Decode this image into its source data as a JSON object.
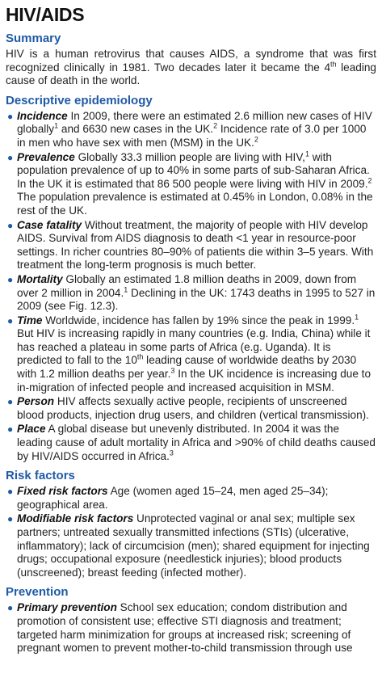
{
  "title": "HIV/AIDS",
  "summary": {
    "heading": "Summary",
    "text1": "HIV is a human retrovirus that causes AIDS, a syndrome that was first recognized clinically in 1981. Two decades later it became the 4",
    "sup": "th",
    "text2": " leading cause of death in the world."
  },
  "epidemiology": {
    "heading": "Descriptive epidemiology",
    "incidence": {
      "term": "Incidence",
      "t1": " In 2009, there were an estimated 2.6 million new cases of HIV globally",
      "s1": "1",
      "t2": " and 6630 new cases in the UK.",
      "s2": "2",
      "t3": " Incidence rate of 3.0 per 1000 in men who have sex with men (MSM) in the UK.",
      "s3": "2"
    },
    "prevalence": {
      "term": "Prevalence",
      "t1": " Globally 33.3 million people are living with HIV,",
      "s1": "1",
      "t2": " with population prevalence of up to 40% in some parts of sub-Saharan Africa. In the UK it is estimated that 86 500 people were living with HIV in 2009.",
      "s2": "2",
      "t3": " The population prevalence is estimated at 0.45% in London, 0.08% in the rest of the UK."
    },
    "fatality": {
      "term": "Case fatality",
      "t1": " Without treatment, the majority of people with HIV develop AIDS. Survival from AIDS diagnosis to death <1 year in resource-poor settings. In richer countries 80–90% of patients die within 3–5 years. With treatment the long-term prognosis is much better."
    },
    "mortality": {
      "term": "Mortality",
      "t1": " Globally an estimated 1.8 million deaths in 2009, down from over 2 million in 2004.",
      "s1": "1",
      "t2": " Declining in the UK: 1743 deaths in 1995 to 527 in 2009 (see Fig. 12.3)."
    },
    "time": {
      "term": "Time",
      "t1": " Worldwide, incidence has fallen by 19% since the peak in 1999.",
      "s1": "1",
      "t2": " But HIV is increasing rapidly in many countries (e.g. India, China) while it has reached a plateau in some parts of Africa (e.g. Uganda). It is predicted to fall to the 10",
      "s2": "th",
      "t3": " leading cause of worldwide deaths by 2030 with 1.2 million deaths per year.",
      "s3": "3",
      "t4": " In the UK incidence is increasing due to in-migration of infected people and increased acquisition in MSM."
    },
    "person": {
      "term": "Person",
      "t1": " HIV affects sexually active people, recipients of unscreened blood products, injection drug users, and children (vertical transmission)."
    },
    "place": {
      "term": "Place",
      "t1": " A global disease but unevenly distributed. In 2004 it was the leading cause of adult mortality in Africa and >90% of child deaths caused by HIV/AIDS occurred in Africa.",
      "s1": "3"
    }
  },
  "risk": {
    "heading": "Risk factors",
    "fixed": {
      "term": "Fixed risk factors",
      "t1": " Age (women aged 15–24, men aged 25–34); geographical area."
    },
    "modifiable": {
      "term": "Modifiable risk factors",
      "t1": " Unprotected vaginal or anal sex; multiple sex partners; untreated sexually transmitted infections (STIs) (ulcerative, inflammatory); lack of circumcision (men); shared equipment for injecting drugs; occupational exposure (needlestick injuries); blood products (unscreened); breast feeding (infected mother)."
    }
  },
  "prevention": {
    "heading": "Prevention",
    "primary": {
      "term": "Primary prevention",
      "t1": " School sex education; condom distribution and promotion of consistent use; effective STI diagnosis and treatment; targeted harm minimization for groups at increased risk; screening of pregnant women to prevent mother-to-child transmission through use"
    }
  }
}
